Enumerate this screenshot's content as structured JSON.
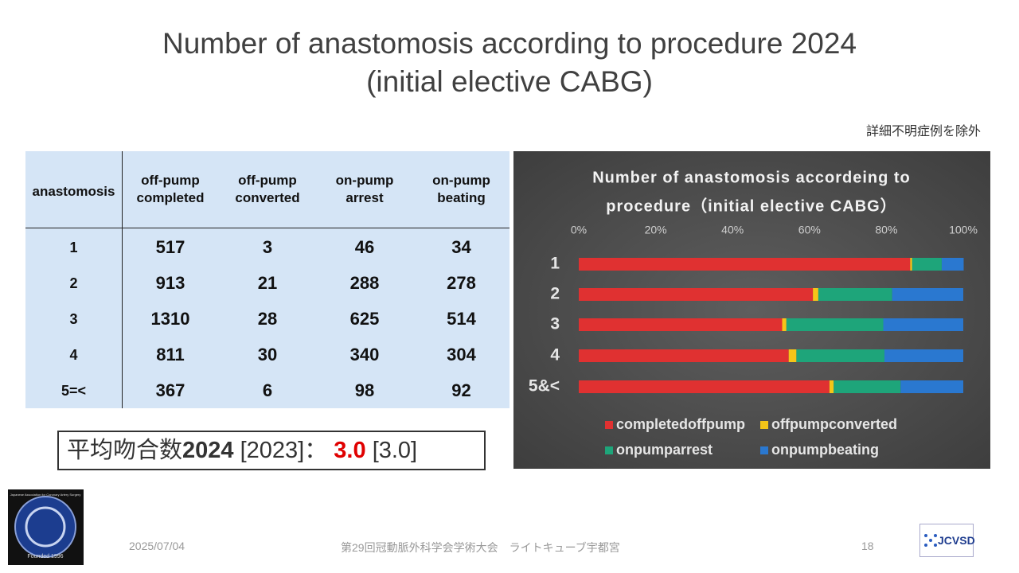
{
  "header": {
    "title_lines": [
      "Number of anastomosis according to procedure 2024",
      "(initial elective CABG)"
    ],
    "note": "詳細不明症例を除外"
  },
  "table": {
    "columns": [
      "anastomosis",
      "off-pump\ncompleted",
      "off-pump\nconverted",
      "on-pump\narrest",
      "on-pump\nbeating"
    ],
    "rows": [
      [
        "1",
        517,
        3,
        46,
        34
      ],
      [
        "2",
        913,
        21,
        288,
        278
      ],
      [
        "3",
        1310,
        28,
        625,
        514
      ],
      [
        "4",
        811,
        30,
        340,
        304
      ],
      [
        "5=<",
        367,
        6,
        98,
        92
      ]
    ]
  },
  "summary": {
    "label": "平均吻合数",
    "year": "2024",
    "prev_year": "[2023]：",
    "value": "3.0",
    "prev_value": "[3.0]"
  },
  "chart_data": {
    "type": "stacked_bar_horizontal",
    "title_lines": [
      "Number of anastomosis accordeing to",
      "procedure（initial elective CABG）"
    ],
    "categories": [
      "1",
      "2",
      "3",
      "4",
      "5&<"
    ],
    "series": [
      {
        "name": "completedoffpump",
        "color": "#e03131",
        "values": [
          86.2,
          60.9,
          52.9,
          54.6,
          65.2
        ]
      },
      {
        "name": "offpumpconverted",
        "color": "#f5c518",
        "values": [
          0.5,
          1.4,
          1.1,
          2.0,
          1.1
        ]
      },
      {
        "name": "onpumparrest",
        "color": "#1ea57a",
        "values": [
          7.7,
          19.2,
          25.2,
          22.9,
          17.4
        ]
      },
      {
        "name": "onpumpbeating",
        "color": "#2a78d0",
        "values": [
          5.7,
          18.5,
          20.8,
          20.5,
          16.3
        ]
      }
    ],
    "xlim": [
      0,
      100
    ],
    "xticks": [
      {
        "value": 0,
        "label": "0%"
      },
      {
        "value": 20,
        "label": "20%"
      },
      {
        "value": 40,
        "label": "40%"
      },
      {
        "value": 60,
        "label": "60%"
      },
      {
        "value": 80,
        "label": "80%"
      },
      {
        "value": 100,
        "label": "100%"
      }
    ],
    "legend": "bottom"
  },
  "footer": {
    "date": "2025/07/04",
    "meeting": "第29回冠動脈外科学会学術大会　ライトキューブ宇都宮",
    "page": 18,
    "logo_left_text": "Japanese Association for Coronary Artery Surgery",
    "logo_left_founded": "Founded 1996",
    "logo_right": "JCVSD"
  }
}
